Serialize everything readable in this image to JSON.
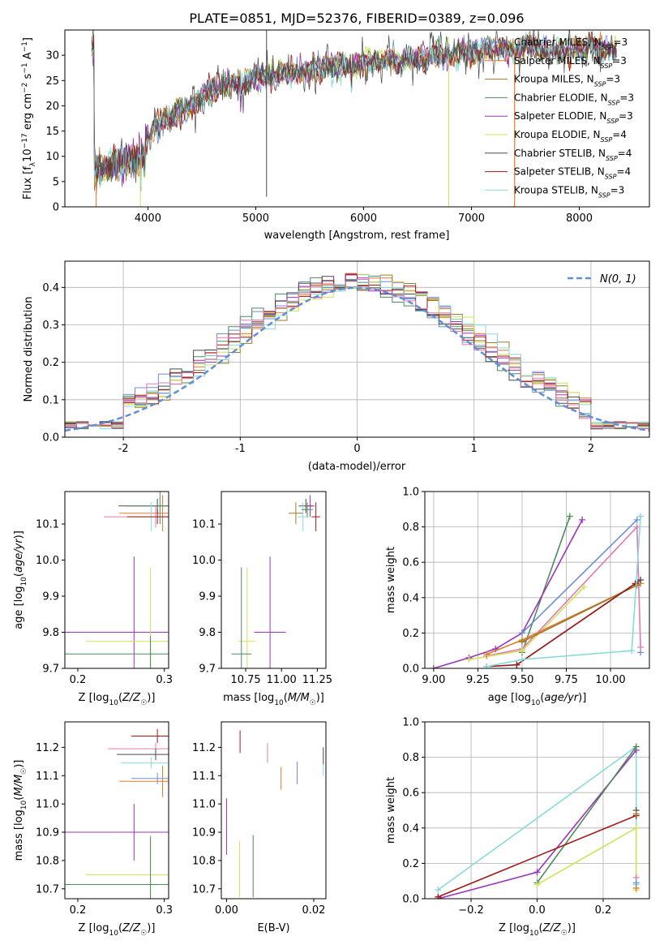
{
  "figure": {
    "title": "PLATE=0851, MJD=52376, FIBERID=0389, z=0.096"
  },
  "colors": {
    "Chabrier MILES": "#6a8fd8",
    "Salpeter MILES": "#e07a2c",
    "Kroupa MILES": "#9c7a2a",
    "Chabrier ELODIE": "#4f8a5b",
    "Salpeter ELODIE": "#9b34b8",
    "Kroupa ELODIE": "#cde35a",
    "Chabrier STELIB": "#4a4a4a",
    "Salpeter STELIB": "#a01818",
    "Kroupa STELIB": "#86d9dd",
    "pink": "#e07ab0",
    "normal": "#5f8fd6"
  },
  "chart_data": [
    {
      "id": "spectrum",
      "type": "line",
      "xlabel": "wavelength [Angstrom, rest frame]",
      "ylabel": "Flux [f_λ10^-17 erg cm^-2 s^-1 A^-1]",
      "xlim": [
        3230,
        8650
      ],
      "ylim": [
        0,
        35
      ],
      "xticks": [
        4000,
        5000,
        6000,
        7000,
        8000
      ],
      "yticks": [
        0,
        5,
        10,
        15,
        20,
        25,
        30
      ],
      "legend_position": "upper-right",
      "legend": [
        {
          "label": "Chabrier MILES",
          "nssp": "3"
        },
        {
          "label": "Salpeter MILES",
          "nssp": "3"
        },
        {
          "label": "Kroupa MILES",
          "nssp": "3"
        },
        {
          "label": "Chabrier ELODIE",
          "nssp": "3"
        },
        {
          "label": "Salpeter ELODIE",
          "nssp": "3"
        },
        {
          "label": "Kroupa ELODIE",
          "nssp": "4"
        },
        {
          "label": "Chabrier STELIB",
          "nssp": "4"
        },
        {
          "label": "Salpeter STELIB",
          "nssp": "4"
        },
        {
          "label": "Kroupa STELIB",
          "nssp": "3"
        }
      ],
      "continuum": [
        [
          3500,
          7
        ],
        [
          3650,
          8
        ],
        [
          3800,
          9
        ],
        [
          3950,
          10
        ],
        [
          4000,
          14
        ],
        [
          4100,
          17
        ],
        [
          4200,
          18
        ],
        [
          4300,
          19
        ],
        [
          4400,
          20
        ],
        [
          4500,
          22
        ],
        [
          4600,
          23
        ],
        [
          4700,
          24
        ],
        [
          4800,
          24.5
        ],
        [
          4900,
          25
        ],
        [
          5000,
          25.5
        ],
        [
          5100,
          26
        ],
        [
          5200,
          26
        ],
        [
          5300,
          26.5
        ],
        [
          5400,
          26.5
        ],
        [
          5500,
          27
        ],
        [
          5600,
          27
        ],
        [
          5700,
          28
        ],
        [
          5800,
          28
        ],
        [
          5900,
          28
        ],
        [
          6000,
          28.5
        ],
        [
          6100,
          28.5
        ],
        [
          6200,
          29
        ],
        [
          6300,
          29
        ],
        [
          6400,
          29
        ],
        [
          6500,
          29.5
        ],
        [
          6600,
          29.5
        ],
        [
          6700,
          30
        ],
        [
          6800,
          30
        ],
        [
          6900,
          30.5
        ],
        [
          7000,
          30.5
        ],
        [
          7100,
          31
        ],
        [
          7200,
          31
        ],
        [
          7300,
          31
        ],
        [
          7400,
          31
        ],
        [
          7500,
          32
        ],
        [
          7600,
          31.5
        ],
        [
          7700,
          31
        ],
        [
          7800,
          31
        ],
        [
          7900,
          31
        ],
        [
          8000,
          31.5
        ],
        [
          8100,
          31.5
        ],
        [
          8200,
          31
        ],
        [
          8300,
          31
        ]
      ]
    },
    {
      "id": "residuals",
      "type": "area",
      "xlabel": "(data-model)/error",
      "ylabel": "Normed distribution",
      "xlim": [
        -2.5,
        2.5
      ],
      "ylim": [
        0,
        0.47
      ],
      "xticks": [
        -2,
        -1,
        0,
        1,
        2
      ],
      "yticks": [
        0.0,
        0.1,
        0.2,
        0.3,
        0.4
      ],
      "bin_width": 0.1,
      "grid": true,
      "legend_position": "upper-right",
      "legend_label": "N(0, 1)",
      "normal_pdf": {
        "mean": 0,
        "sigma": 1
      }
    },
    {
      "id": "age_vs_Z",
      "type": "scatter",
      "xlabel": "Z [log10(Z/Z☉)]",
      "ylabel": "age [log10(age/yr)]",
      "xlim": [
        0.185,
        0.305
      ],
      "ylim": [
        9.7,
        10.19
      ],
      "xticks": [
        0.2,
        0.3
      ],
      "yticks": [
        9.7,
        9.8,
        9.9,
        10.0,
        10.1
      ],
      "points": [
        {
          "x": 0.292,
          "y": 10.15,
          "xerr": 0.045,
          "yerr": 0.02,
          "color": "Chabrier STELIB"
        },
        {
          "x": 0.298,
          "y": 10.13,
          "xerr": 0.05,
          "yerr": 0.05,
          "color": "Salpeter MILES"
        },
        {
          "x": 0.29,
          "y": 10.12,
          "xerr": 0.06,
          "yerr": 0.03,
          "color": "pink"
        },
        {
          "x": 0.295,
          "y": 10.15,
          "xerr": 0.04,
          "yerr": 0.05,
          "color": "Chabrier ELODIE"
        },
        {
          "x": 0.285,
          "y": 10.12,
          "xerr": 0.015,
          "yerr": 0.04,
          "color": "Kroupa STELIB"
        },
        {
          "x": 0.292,
          "y": 10.12,
          "xerr": 0.035,
          "yerr": 0.02,
          "color": "Salpeter STELIB"
        },
        {
          "x": 0.265,
          "y": 9.8,
          "xerr": 0.1,
          "yerr": 0.21,
          "color": "Salpeter ELODIE"
        },
        {
          "x": 0.284,
          "y": 9.775,
          "xerr": 0.075,
          "yerr": 0.205,
          "color": "Kroupa ELODIE"
        },
        {
          "x": 0.284,
          "y": 9.74,
          "xerr": 0.1,
          "yerr": 0.05,
          "color": "Chabrier ELODIE"
        }
      ]
    },
    {
      "id": "age_vs_mass",
      "type": "scatter",
      "xlabel": "mass [log10(M/M☉)]",
      "ylabel": "",
      "xlim": [
        10.58,
        11.31
      ],
      "ylim": [
        9.7,
        10.19
      ],
      "xticks": [
        10.75,
        11.0,
        11.25
      ],
      "xticklabels": [
        "10.75",
        "11.00",
        "11.25"
      ],
      "yticks": [
        9.7,
        9.8,
        9.9,
        10.0,
        10.1
      ],
      "points": [
        {
          "x": 11.1,
          "y": 10.13,
          "xerr": 0.05,
          "yerr": 0.03,
          "color": "Kroupa MILES"
        },
        {
          "x": 11.17,
          "y": 10.15,
          "xerr": 0.05,
          "yerr": 0.02,
          "color": "Chabrier STELIB"
        },
        {
          "x": 11.2,
          "y": 10.15,
          "xerr": 0.03,
          "yerr": 0.03,
          "color": "Salpeter ELODIE"
        },
        {
          "x": 11.24,
          "y": 10.12,
          "xerr": 0.03,
          "yerr": 0.04,
          "color": "Salpeter STELIB"
        },
        {
          "x": 11.15,
          "y": 10.12,
          "xerr": 0.04,
          "yerr": 0.04,
          "color": "Kroupa STELIB"
        },
        {
          "x": 11.18,
          "y": 10.14,
          "xerr": 0.04,
          "yerr": 0.02,
          "color": "Chabrier ELODIE"
        },
        {
          "x": 10.92,
          "y": 9.8,
          "xerr": 0.11,
          "yerr": 0.21,
          "color": "Salpeter ELODIE"
        },
        {
          "x": 10.76,
          "y": 9.775,
          "xerr": 0.06,
          "yerr": 0.205,
          "color": "Kroupa ELODIE"
        },
        {
          "x": 10.72,
          "y": 9.74,
          "xerr": 0.07,
          "yerr": 0.24,
          "color": "Chabrier ELODIE"
        }
      ]
    },
    {
      "id": "weight_vs_age",
      "type": "line",
      "xlabel": "age [log10(age/yr)]",
      "ylabel": "mass weight",
      "xlim": [
        8.95,
        10.22
      ],
      "ylim": [
        0,
        1.0
      ],
      "xticks": [
        9.0,
        9.25,
        9.5,
        9.75,
        10.0
      ],
      "xticklabels": [
        "9.00",
        "9.25",
        "9.50",
        "9.75",
        "10.00"
      ],
      "yticks": [
        0.0,
        0.2,
        0.4,
        0.6,
        0.8,
        1.0
      ],
      "grid": true,
      "series": [
        {
          "color": "Chabrier ELODIE",
          "x": [
            9.5,
            9.77
          ],
          "y": [
            0.09,
            0.86
          ]
        },
        {
          "color": "Salpeter ELODIE",
          "x": [
            9.0,
            9.2,
            9.35,
            9.5,
            9.84
          ],
          "y": [
            0.0,
            0.06,
            0.11,
            0.2,
            0.84
          ]
        },
        {
          "color": "Chabrier MILES",
          "x": [
            9.5,
            10.15
          ],
          "y": [
            0.2,
            0.84
          ]
        },
        {
          "color": "pink",
          "x": [
            9.3,
            9.5,
            10.15,
            10.17
          ],
          "y": [
            0.07,
            0.11,
            0.8,
            0.12
          ]
        },
        {
          "color": "Kroupa ELODIE",
          "x": [
            9.2,
            9.5,
            9.85
          ],
          "y": [
            0.05,
            0.1,
            0.46
          ]
        },
        {
          "color": "Salpeter MILES",
          "x": [
            9.3,
            9.5,
            10.17
          ],
          "y": [
            0.08,
            0.16,
            0.48
          ]
        },
        {
          "color": "Kroupa MILES",
          "x": [
            9.5,
            10.15
          ],
          "y": [
            0.15,
            0.47
          ]
        },
        {
          "color": "Chabrier STELIB",
          "x": [
            9.47,
            10.17
          ],
          "y": [
            0.02,
            0.5
          ]
        },
        {
          "color": "Salpeter STELIB",
          "x": [
            9.3,
            9.47,
            10.14
          ],
          "y": [
            0.01,
            0.02,
            0.48
          ]
        },
        {
          "color": "Kroupa STELIB",
          "x": [
            9.3,
            9.5,
            10.12,
            10.17
          ],
          "y": [
            0.01,
            0.05,
            0.1,
            0.86
          ]
        },
        {
          "color": "Chabrier MILES",
          "x": [
            10.17
          ],
          "y": [
            0.09
          ]
        }
      ]
    },
    {
      "id": "mass_vs_Z",
      "type": "scatter",
      "xlabel": "Z [log10(Z/Z☉)]",
      "ylabel": "mass [log10(M/M☉)]",
      "xlim": [
        0.185,
        0.305
      ],
      "ylim": [
        10.665,
        11.29
      ],
      "xticks": [
        0.2,
        0.3
      ],
      "yticks": [
        10.7,
        10.8,
        10.9,
        11.0,
        11.1,
        11.2
      ],
      "points": [
        {
          "x": 0.292,
          "y": 11.24,
          "xerr": 0.03,
          "yerr": 0.025,
          "color": "Salpeter STELIB"
        },
        {
          "x": 0.29,
          "y": 11.195,
          "xerr": 0.055,
          "yerr": 0.02,
          "color": "pink"
        },
        {
          "x": 0.29,
          "y": 11.175,
          "xerr": 0.045,
          "yerr": 0.02,
          "color": "Chabrier STELIB"
        },
        {
          "x": 0.285,
          "y": 11.145,
          "xerr": 0.035,
          "yerr": 0.02,
          "color": "Kroupa STELIB"
        },
        {
          "x": 0.292,
          "y": 11.09,
          "xerr": 0.03,
          "yerr": 0.02,
          "color": "Chabrier MILES"
        },
        {
          "x": 0.298,
          "y": 11.08,
          "xerr": 0.05,
          "yerr": 0.055,
          "color": "Salpeter MILES"
        },
        {
          "x": 0.265,
          "y": 10.9,
          "xerr": 0.08,
          "yerr": 0.1,
          "color": "Salpeter ELODIE"
        },
        {
          "x": 0.284,
          "y": 10.75,
          "xerr": 0.075,
          "yerr": 0.14,
          "color": "Kroupa ELODIE"
        },
        {
          "x": 0.284,
          "y": 10.715,
          "xerr": 0.1,
          "yerr": 0.17,
          "color": "Chabrier ELODIE"
        }
      ]
    },
    {
      "id": "mass_vs_ebv",
      "type": "scatter",
      "xlabel": "E(B-V)",
      "ylabel": "",
      "xlim": [
        -0.0012,
        0.0228
      ],
      "ylim": [
        10.665,
        11.29
      ],
      "xticks": [
        0.0,
        0.02
      ],
      "xticklabels": [
        "0.00",
        "0.02"
      ],
      "yticks": [
        10.7,
        10.8,
        10.9,
        11.0,
        11.1,
        11.2
      ],
      "points": [
        {
          "x": 0.0031,
          "y": 11.22,
          "yerr": 0.04,
          "color": "Salpeter STELIB"
        },
        {
          "x": 0.0094,
          "y": 11.18,
          "yerr": 0.035,
          "color": "pink"
        },
        {
          "x": 0.0222,
          "y": 11.17,
          "yerr": 0.03,
          "color": "Chabrier STELIB"
        },
        {
          "x": 0.0222,
          "y": 11.12,
          "yerr": 0.02,
          "color": "Kroupa STELIB"
        },
        {
          "x": 0.0125,
          "y": 11.09,
          "yerr": 0.04,
          "color": "Salpeter MILES"
        },
        {
          "x": 0.0162,
          "y": 11.11,
          "yerr": 0.04,
          "color": "Chabrier MILES"
        },
        {
          "x": 0.0,
          "y": 10.92,
          "yerr": 0.1,
          "color": "Salpeter ELODIE"
        },
        {
          "x": 0.003,
          "y": 10.77,
          "yerr": 0.1,
          "color": "Kroupa ELODIE"
        },
        {
          "x": 0.0061,
          "y": 10.78,
          "yerr": 0.11,
          "color": "Chabrier ELODIE"
        }
      ]
    },
    {
      "id": "weight_vs_Z",
      "type": "line",
      "xlabel": "Z [log10(Z/Z☉)]",
      "ylabel": "mass weight",
      "xlim": [
        -0.34,
        0.34
      ],
      "ylim": [
        0,
        1.0
      ],
      "xticks": [
        -0.2,
        0.0,
        0.2
      ],
      "xticklabels": [
        "−0.2",
        "0.0",
        "0.2"
      ],
      "yticks": [
        0.0,
        0.2,
        0.4,
        0.6,
        0.8,
        1.0
      ],
      "grid": true,
      "series": [
        {
          "color": "Kroupa STELIB",
          "x": [
            -0.3,
            0.3,
            0.3
          ],
          "y": [
            0.05,
            0.86,
            0.08
          ]
        },
        {
          "color": "Salpeter ELODIE",
          "x": [
            -0.3,
            0.0,
            0.3
          ],
          "y": [
            0.0,
            0.15,
            0.84
          ]
        },
        {
          "color": "Chabrier ELODIE",
          "x": [
            0.0,
            0.3
          ],
          "y": [
            0.09,
            0.86
          ]
        },
        {
          "color": "Kroupa ELODIE",
          "x": [
            0.0,
            0.3,
            0.3
          ],
          "y": [
            0.08,
            0.4,
            0.05
          ]
        },
        {
          "color": "Salpeter STELIB",
          "x": [
            -0.3,
            0.3
          ],
          "y": [
            0.01,
            0.47
          ]
        },
        {
          "color": "Chabrier STELIB",
          "x": [
            0.3
          ],
          "y": [
            0.5
          ]
        },
        {
          "color": "Kroupa MILES",
          "x": [
            0.3
          ],
          "y": [
            0.48
          ]
        },
        {
          "color": "Salpeter MILES",
          "x": [
            0.3
          ],
          "y": [
            0.06
          ]
        },
        {
          "color": "pink",
          "x": [
            0.3
          ],
          "y": [
            0.12
          ]
        },
        {
          "color": "Chabrier MILES",
          "x": [
            0.3
          ],
          "y": [
            0.09
          ]
        }
      ]
    }
  ]
}
